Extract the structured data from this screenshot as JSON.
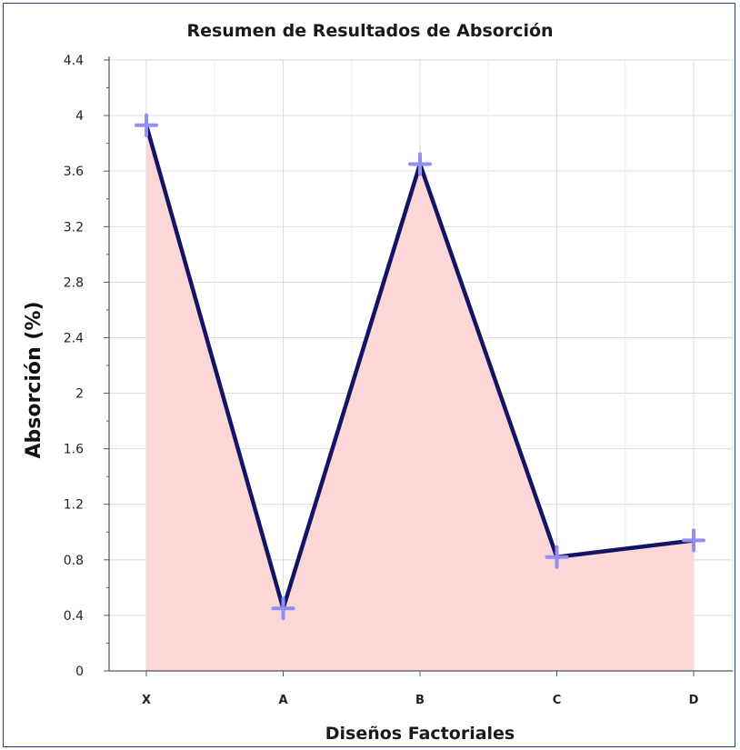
{
  "chart_data": {
    "type": "area",
    "title": "Resumen de Resultados de Absorción",
    "xlabel": "Diseños Factoriales",
    "ylabel": "Absorción (%)",
    "categories": [
      "X",
      "A",
      "B",
      "C",
      "D"
    ],
    "values": [
      3.93,
      0.45,
      3.65,
      0.82,
      0.94
    ],
    "ylim": [
      0,
      4.4
    ],
    "yticks": [
      "0",
      "0.4",
      "0.8",
      "1.2",
      "1.6",
      "2",
      "2.4",
      "2.8",
      "3.2",
      "3.6",
      "4",
      "4.4"
    ],
    "grid": true,
    "colors": {
      "line": "#141465",
      "fill": "#fdd7d7",
      "marker": "#8f8ff5",
      "grid": "#dcdcdc",
      "axis": "#555555",
      "frame": "#1f3f8f"
    }
  }
}
